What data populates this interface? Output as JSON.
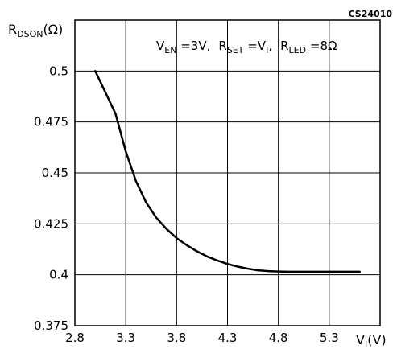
{
  "chart_data": {
    "type": "line",
    "code": "CS24010",
    "ylabel": {
      "main": "R",
      "sub": "DSON",
      "unit": "(Ω)"
    },
    "xlabel": {
      "main": "V",
      "sub": "I",
      "unit": "(V)"
    },
    "annotation": [
      {
        "main": "V",
        "sub": "EN",
        "rest": " =3V,"
      },
      {
        "main": "R",
        "sub": "SET",
        "rest": " =V",
        "sub2": "I",
        "rest2": ","
      },
      {
        "main": "R",
        "sub": "LED",
        "rest": " =8Ω"
      }
    ],
    "xlim": [
      2.8,
      5.8
    ],
    "ylim": [
      0.375,
      0.525
    ],
    "xticks": [
      "2.8",
      "3.3",
      "3.8",
      "4.3",
      "4.8",
      "5.3"
    ],
    "xtick_values": [
      2.8,
      3.3,
      3.8,
      4.3,
      4.8,
      5.3
    ],
    "yticks": [
      "0.375",
      "0.4",
      "0.425",
      "0.45",
      "0.475",
      "0.5"
    ],
    "ytick_values": [
      0.375,
      0.4,
      0.425,
      0.45,
      0.475,
      0.5
    ],
    "grid": true,
    "series": [
      {
        "x": [
          3.0,
          3.1,
          3.2,
          3.3,
          3.4,
          3.5,
          3.6,
          3.7,
          3.8,
          3.9,
          4.0,
          4.1,
          4.2,
          4.3,
          4.4,
          4.5,
          4.6,
          4.7,
          4.8,
          4.9,
          5.0,
          5.2,
          5.4,
          5.6
        ],
        "values": [
          0.5,
          0.4895,
          0.479,
          0.4605,
          0.446,
          0.4355,
          0.428,
          0.4225,
          0.418,
          0.4145,
          0.4115,
          0.409,
          0.407,
          0.4053,
          0.404,
          0.403,
          0.4022,
          0.4018,
          0.4016,
          0.4015,
          0.4015,
          0.4015,
          0.4015,
          0.4015
        ]
      }
    ]
  }
}
